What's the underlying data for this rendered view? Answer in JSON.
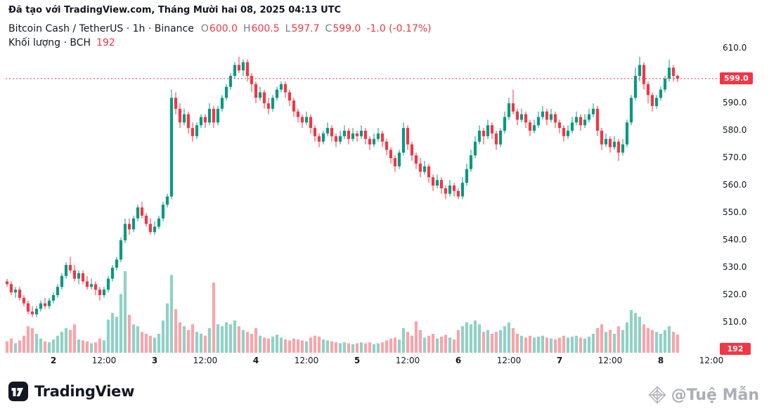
{
  "attribution": {
    "prefix": "Đã tạo với ",
    "link": "TradingView.com",
    "suffix": ", Tháng Mười hai 08, 2025 04:13 UTC"
  },
  "header": {
    "title": "Bitcoin Cash / TetherUS · 1h · Binance",
    "ohlc": {
      "o_label": "O",
      "o": "600.0",
      "h_label": "H",
      "h": "600.5",
      "l_label": "L",
      "l": "597.7",
      "c_label": "C",
      "c": "599.0",
      "change": "-1.0 (-0.17%)"
    },
    "volume_title": "Khối lượng · BCH",
    "volume_value": "192"
  },
  "price_axis": {
    "ticks": [
      {
        "value": 610,
        "label": "610.0"
      },
      {
        "value": 590,
        "label": "590.0"
      },
      {
        "value": 580,
        "label": "580.0"
      },
      {
        "value": 570,
        "label": "570.0"
      },
      {
        "value": 560,
        "label": "560.0"
      },
      {
        "value": 550,
        "label": "550.0"
      },
      {
        "value": 540,
        "label": "540.0"
      },
      {
        "value": 530,
        "label": "530.0"
      },
      {
        "value": 520,
        "label": "520.0"
      },
      {
        "value": 510,
        "label": "510.0"
      }
    ],
    "last_price_label": "599.0",
    "last_volume_label": "192"
  },
  "time_axis": {
    "ticks": [
      {
        "index": 11,
        "label": "2",
        "major": true
      },
      {
        "index": 23,
        "label": "12:00",
        "major": false
      },
      {
        "index": 35,
        "label": "3",
        "major": true
      },
      {
        "index": 47,
        "label": "12:00",
        "major": false
      },
      {
        "index": 59,
        "label": "4",
        "major": true
      },
      {
        "index": 71,
        "label": "12:00",
        "major": false
      },
      {
        "index": 83,
        "label": "5",
        "major": true
      },
      {
        "index": 95,
        "label": "12:00",
        "major": false
      },
      {
        "index": 107,
        "label": "6",
        "major": true
      },
      {
        "index": 119,
        "label": "12:00",
        "major": false
      },
      {
        "index": 131,
        "label": "7",
        "major": true
      },
      {
        "index": 143,
        "label": "12:00",
        "major": false
      },
      {
        "index": 155,
        "label": "8",
        "major": true
      },
      {
        "index": 167,
        "label": "12:00",
        "major": false
      }
    ]
  },
  "footer": {
    "brand": "TradingView"
  },
  "watermark": {
    "text": "@Tuệ Mẫn"
  },
  "chart_data": {
    "type": "candlestick",
    "symbol": "Bitcoin Cash / TetherUS",
    "interval": "1h",
    "exchange": "Binance",
    "last_price": 599.0,
    "last_volume": 192,
    "price_axis_range": [
      505,
      615
    ],
    "legend_ohlc": {
      "open": 600.0,
      "high": 600.5,
      "low": 597.7,
      "close": 599.0,
      "change": -1.0,
      "change_pct": -0.17
    },
    "colors": {
      "up": "#089981",
      "down": "#f23645",
      "volume_up": "rgba(8,153,129,0.45)",
      "volume_down": "rgba(242,54,69,0.45)",
      "last_price_line": "#f23645",
      "badge": "#f23645"
    },
    "candles_format": [
      "open",
      "high",
      "low",
      "close",
      "volume"
    ],
    "candles": [
      [
        525,
        526,
        523,
        524,
        120
      ],
      [
        524,
        525,
        520,
        521,
        150
      ],
      [
        521,
        523,
        519,
        522,
        100
      ],
      [
        522,
        523,
        518,
        519,
        130
      ],
      [
        519,
        520,
        516,
        517,
        180
      ],
      [
        517,
        518,
        513,
        514,
        280
      ],
      [
        514,
        516,
        512,
        513,
        260
      ],
      [
        513,
        516,
        512,
        515,
        200
      ],
      [
        515,
        518,
        514,
        517,
        150
      ],
      [
        517,
        519,
        515,
        516,
        120
      ],
      [
        516,
        519,
        515,
        518,
        110
      ],
      [
        518,
        521,
        517,
        520,
        140
      ],
      [
        520,
        524,
        519,
        523,
        180
      ],
      [
        523,
        528,
        522,
        527,
        220
      ],
      [
        527,
        532,
        526,
        531,
        260
      ],
      [
        531,
        534,
        528,
        529,
        240
      ],
      [
        529,
        531,
        525,
        526,
        300
      ],
      [
        526,
        529,
        524,
        528,
        140
      ],
      [
        528,
        529,
        524,
        525,
        130
      ],
      [
        525,
        527,
        522,
        523,
        120
      ],
      [
        523,
        526,
        522,
        524,
        100
      ],
      [
        524,
        525,
        520,
        522,
        110
      ],
      [
        522,
        523,
        518,
        520,
        150
      ],
      [
        520,
        523,
        519,
        522,
        130
      ],
      [
        522,
        527,
        521,
        526,
        350
      ],
      [
        526,
        531,
        525,
        530,
        420
      ],
      [
        530,
        534,
        529,
        533,
        380
      ],
      [
        533,
        541,
        532,
        540,
        620
      ],
      [
        540,
        548,
        539,
        546,
        860
      ],
      [
        546,
        548,
        542,
        544,
        400
      ],
      [
        544,
        549,
        543,
        548,
        300
      ],
      [
        548,
        553,
        547,
        552,
        280
      ],
      [
        552,
        554,
        548,
        549,
        220
      ],
      [
        549,
        550,
        545,
        546,
        200
      ],
      [
        546,
        548,
        542,
        543,
        180
      ],
      [
        543,
        547,
        542,
        545,
        160
      ],
      [
        545,
        549,
        544,
        548,
        200
      ],
      [
        548,
        554,
        547,
        553,
        340
      ],
      [
        553,
        557,
        552,
        556,
        520
      ],
      [
        556,
        595,
        555,
        592,
        820
      ],
      [
        592,
        594,
        586,
        588,
        460
      ],
      [
        588,
        590,
        581,
        583,
        320
      ],
      [
        583,
        588,
        582,
        586,
        280
      ],
      [
        586,
        587,
        579,
        581,
        240
      ],
      [
        581,
        583,
        576,
        578,
        300
      ],
      [
        578,
        583,
        577,
        582,
        220
      ],
      [
        582,
        586,
        581,
        585,
        200
      ],
      [
        585,
        586,
        581,
        583,
        180
      ],
      [
        583,
        590,
        582,
        588,
        260
      ],
      [
        588,
        589,
        581,
        583,
        740
      ],
      [
        583,
        589,
        582,
        588,
        300
      ],
      [
        588,
        593,
        587,
        592,
        280
      ],
      [
        592,
        597,
        591,
        596,
        320
      ],
      [
        596,
        601,
        595,
        600,
        300
      ],
      [
        600,
        605,
        599,
        604,
        340
      ],
      [
        604,
        607,
        601,
        602,
        280
      ],
      [
        602,
        606,
        600,
        605,
        240
      ],
      [
        605,
        606,
        598,
        600,
        220
      ],
      [
        600,
        601,
        594,
        597,
        200
      ],
      [
        597,
        598,
        590,
        592,
        260
      ],
      [
        592,
        596,
        591,
        594,
        180
      ],
      [
        594,
        595,
        588,
        590,
        160
      ],
      [
        590,
        592,
        586,
        588,
        150
      ],
      [
        588,
        593,
        587,
        592,
        170
      ],
      [
        592,
        596,
        591,
        595,
        190
      ],
      [
        595,
        598,
        594,
        597,
        160
      ],
      [
        597,
        598,
        592,
        594,
        140
      ],
      [
        594,
        595,
        589,
        591,
        130
      ],
      [
        591,
        592,
        585,
        587,
        150
      ],
      [
        587,
        588,
        583,
        585,
        140
      ],
      [
        585,
        586,
        581,
        583,
        130
      ],
      [
        583,
        587,
        582,
        585,
        120
      ],
      [
        585,
        586,
        579,
        581,
        160
      ],
      [
        581,
        582,
        576,
        578,
        180
      ],
      [
        578,
        579,
        574,
        576,
        170
      ],
      [
        576,
        580,
        575,
        579,
        140
      ],
      [
        579,
        583,
        578,
        581,
        130
      ],
      [
        581,
        582,
        576,
        578,
        120
      ],
      [
        578,
        579,
        574,
        576,
        110
      ],
      [
        576,
        580,
        575,
        578,
        100
      ],
      [
        578,
        582,
        577,
        580,
        110
      ],
      [
        580,
        581,
        575,
        577,
        100
      ],
      [
        577,
        581,
        576,
        579,
        90
      ],
      [
        579,
        580,
        576,
        578,
        100
      ],
      [
        578,
        582,
        577,
        580,
        110
      ],
      [
        580,
        581,
        575,
        577,
        100
      ],
      [
        577,
        578,
        573,
        575,
        110
      ],
      [
        575,
        579,
        574,
        577,
        90
      ],
      [
        577,
        581,
        576,
        579,
        100
      ],
      [
        579,
        580,
        574,
        576,
        110
      ],
      [
        576,
        577,
        571,
        573,
        130
      ],
      [
        573,
        574,
        568,
        570,
        150
      ],
      [
        570,
        571,
        565,
        567,
        160
      ],
      [
        567,
        573,
        566,
        572,
        140
      ],
      [
        572,
        583,
        571,
        581,
        260
      ],
      [
        581,
        582,
        573,
        575,
        220
      ],
      [
        575,
        576,
        569,
        571,
        180
      ],
      [
        571,
        572,
        566,
        568,
        330
      ],
      [
        568,
        570,
        563,
        565,
        240
      ],
      [
        565,
        569,
        564,
        567,
        160
      ],
      [
        567,
        568,
        561,
        563,
        180
      ],
      [
        563,
        564,
        558,
        560,
        200
      ],
      [
        560,
        564,
        559,
        562,
        150
      ],
      [
        562,
        563,
        557,
        559,
        170
      ],
      [
        559,
        560,
        555,
        557,
        190
      ],
      [
        557,
        562,
        556,
        560,
        160
      ],
      [
        560,
        561,
        556,
        558,
        140
      ],
      [
        558,
        559,
        555,
        556,
        240
      ],
      [
        556,
        563,
        555,
        561,
        280
      ],
      [
        561,
        568,
        560,
        566,
        320
      ],
      [
        566,
        573,
        565,
        571,
        300
      ],
      [
        571,
        578,
        570,
        576,
        340
      ],
      [
        576,
        582,
        575,
        580,
        300
      ],
      [
        580,
        581,
        575,
        578,
        220
      ],
      [
        578,
        584,
        577,
        582,
        240
      ],
      [
        582,
        583,
        577,
        579,
        200
      ],
      [
        579,
        580,
        573,
        575,
        220
      ],
      [
        575,
        581,
        574,
        580,
        240
      ],
      [
        580,
        587,
        579,
        585,
        280
      ],
      [
        585,
        592,
        584,
        590,
        320
      ],
      [
        590,
        595,
        586,
        587,
        260
      ],
      [
        587,
        588,
        582,
        584,
        200
      ],
      [
        584,
        588,
        583,
        586,
        180
      ],
      [
        586,
        587,
        581,
        583,
        160
      ],
      [
        583,
        584,
        578,
        580,
        180
      ],
      [
        580,
        584,
        579,
        582,
        160
      ],
      [
        582,
        587,
        581,
        585,
        170
      ],
      [
        585,
        589,
        584,
        587,
        180
      ],
      [
        587,
        588,
        582,
        584,
        160
      ],
      [
        584,
        588,
        583,
        586,
        150
      ],
      [
        586,
        587,
        581,
        583,
        140
      ],
      [
        583,
        584,
        579,
        581,
        160
      ],
      [
        581,
        582,
        576,
        578,
        180
      ],
      [
        578,
        582,
        577,
        580,
        160
      ],
      [
        580,
        585,
        579,
        583,
        170
      ],
      [
        583,
        587,
        582,
        585,
        180
      ],
      [
        585,
        586,
        580,
        582,
        160
      ],
      [
        582,
        586,
        581,
        584,
        150
      ],
      [
        584,
        588,
        583,
        586,
        170
      ],
      [
        586,
        590,
        585,
        588,
        200
      ],
      [
        588,
        589,
        578,
        580,
        260
      ],
      [
        580,
        581,
        573,
        575,
        300
      ],
      [
        575,
        579,
        574,
        577,
        220
      ],
      [
        577,
        578,
        572,
        574,
        240
      ],
      [
        574,
        578,
        573,
        576,
        200
      ],
      [
        576,
        577,
        569,
        572,
        280
      ],
      [
        572,
        577,
        571,
        575,
        240
      ],
      [
        575,
        584,
        574,
        583,
        320
      ],
      [
        583,
        593,
        582,
        592,
        450
      ],
      [
        592,
        603,
        591,
        600,
        420
      ],
      [
        600,
        607,
        598,
        604,
        380
      ],
      [
        604,
        605,
        595,
        597,
        300
      ],
      [
        597,
        598,
        590,
        593,
        260
      ],
      [
        593,
        594,
        587,
        589,
        240
      ],
      [
        589,
        593,
        588,
        592,
        220
      ],
      [
        592,
        596,
        591,
        595,
        200
      ],
      [
        595,
        600,
        594,
        599,
        240
      ],
      [
        599,
        606,
        598,
        603,
        280
      ],
      [
        603,
        604,
        598,
        600,
        220
      ],
      [
        600,
        600.5,
        597.7,
        599,
        192
      ]
    ]
  }
}
